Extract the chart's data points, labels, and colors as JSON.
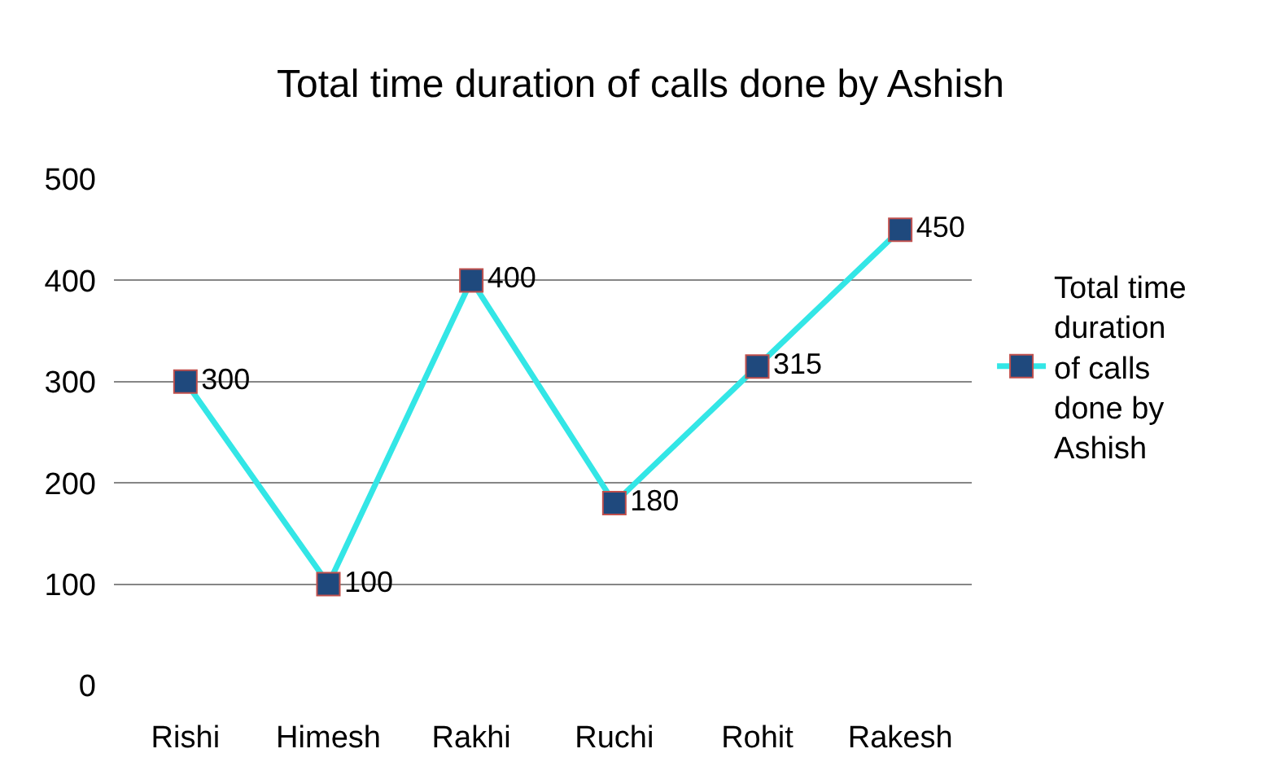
{
  "chart_data": {
    "type": "line",
    "title": "Total time duration of calls done by Ashish",
    "categories": [
      "Rishi",
      "Himesh",
      "Rakhi",
      "Ruchi",
      "Rohit",
      "Rakesh"
    ],
    "series": [
      {
        "name": "Total time duration of calls done by Ashish",
        "color": "#33e6e6",
        "values": [
          300,
          100,
          400,
          180,
          315,
          450
        ]
      }
    ],
    "ylim": [
      0,
      500
    ],
    "yticks": [
      0,
      100,
      200,
      300,
      400,
      500
    ],
    "grid": "y",
    "legend": "right",
    "marker": "square",
    "data_labels": true
  }
}
